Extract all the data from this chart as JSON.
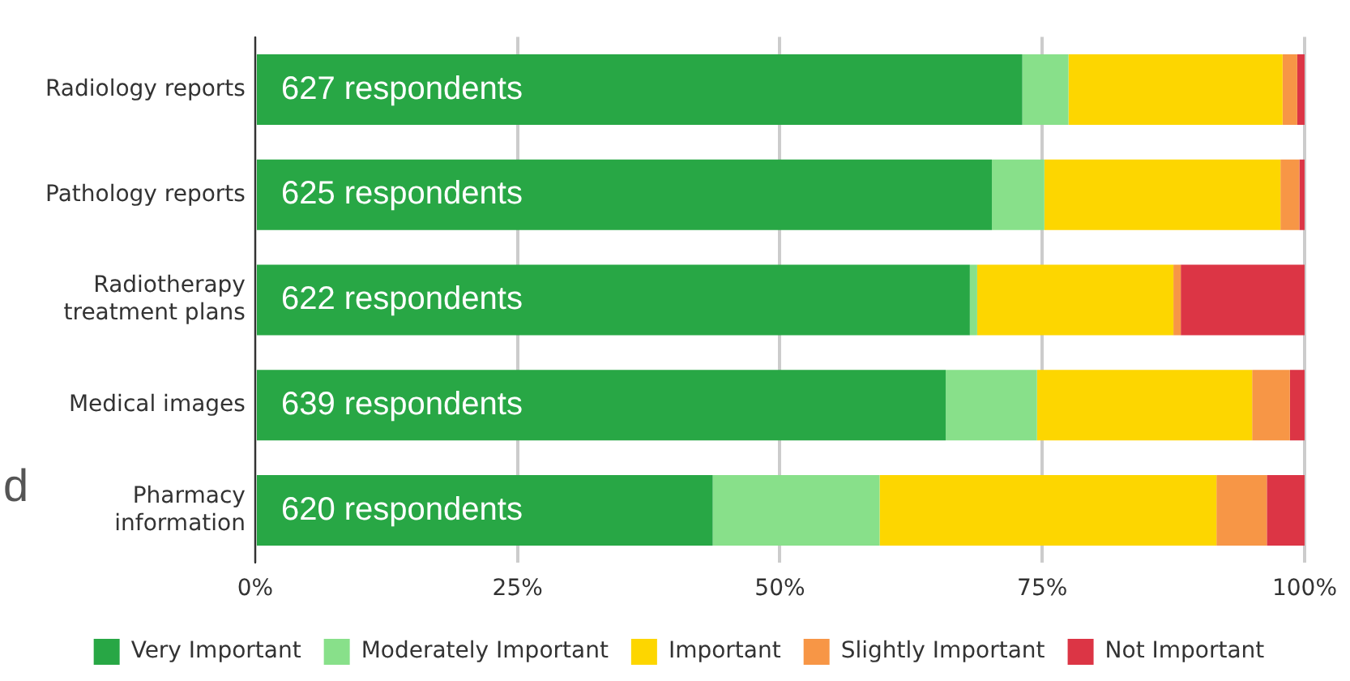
{
  "chart_data": {
    "type": "bar",
    "orientation": "horizontal",
    "stacked": true,
    "categories": [
      "Radiology reports",
      "Pathology reports",
      "Radiotherapy treatment plans",
      "Medical images",
      "Pharmacy information"
    ],
    "series": [
      {
        "name": "Very Important",
        "color": "#28a745",
        "values": [
          73.1,
          70.2,
          68.1,
          65.8,
          43.6
        ]
      },
      {
        "name": "Moderately Important",
        "color": "#88e08a",
        "values": [
          4.4,
          5.0,
          0.7,
          8.7,
          15.9
        ]
      },
      {
        "name": "Important",
        "color": "#fdd600",
        "values": [
          20.4,
          22.5,
          18.7,
          20.5,
          32.1
        ]
      },
      {
        "name": "Slightly Important",
        "color": "#f79646",
        "values": [
          1.4,
          1.8,
          0.7,
          3.6,
          4.8
        ]
      },
      {
        "name": "Not Important",
        "color": "#dc3545",
        "values": [
          0.7,
          0.5,
          11.8,
          1.4,
          3.6
        ]
      }
    ],
    "xlim": [
      0,
      100
    ],
    "xticks": [
      {
        "value": 0,
        "label": "0%"
      },
      {
        "value": 25,
        "label": "25%"
      },
      {
        "value": 50,
        "label": "50%"
      },
      {
        "value": 75,
        "label": "75%"
      },
      {
        "value": 100,
        "label": "100%"
      }
    ],
    "grid": "x",
    "legend": "bottom",
    "annotations": [
      "627 respondents",
      "625 respondents",
      "622 respondents",
      "639 respondents",
      "620 respondents",
      "d"
    ]
  }
}
